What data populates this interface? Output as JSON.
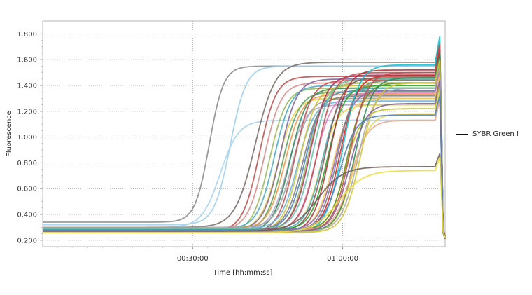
{
  "chart_data": {
    "type": "line",
    "title": "",
    "xlabel": "Time [hh:mm:ss]",
    "ylabel": "Fluorescence",
    "x_unit": "seconds",
    "xlim": [
      0,
      4830
    ],
    "ylim": [
      0.15,
      1.9
    ],
    "x_ticks": [
      {
        "value": 1800,
        "label": "00:30:00"
      },
      {
        "value": 3600,
        "label": "01:00:00"
      }
    ],
    "y_ticks": [
      {
        "value": 0.2,
        "label": "0.200"
      },
      {
        "value": 0.4,
        "label": "0.400"
      },
      {
        "value": 0.6,
        "label": "0.600"
      },
      {
        "value": 0.8,
        "label": "0.800"
      },
      {
        "value": 1.0,
        "label": "1.000"
      },
      {
        "value": 1.2,
        "label": "1.200"
      },
      {
        "value": 1.4,
        "label": "1.400"
      },
      {
        "value": 1.6,
        "label": "1.600"
      },
      {
        "value": 1.8,
        "label": "1.800"
      }
    ],
    "grid": true,
    "legend_position": "right",
    "legend": [
      {
        "label": "SYBR Green I",
        "color": "#111111"
      }
    ],
    "melt_start": 4710,
    "melt_end": 4830,
    "series": [
      {
        "color": "#8c8c8c",
        "baseline": 0.34,
        "plateau": 1.55,
        "midpoint": 2000,
        "slope": 85,
        "final": 1.7,
        "end": 0.24
      },
      {
        "color": "#9fcfee",
        "baseline": 0.32,
        "plateau": 1.55,
        "midpoint": 2250,
        "slope": 95,
        "final": 1.72,
        "end": 0.22
      },
      {
        "color": "#a9d3f0",
        "baseline": 0.3,
        "plateau": 1.13,
        "midpoint": 2130,
        "slope": 110,
        "final": 1.3,
        "end": 0.22
      },
      {
        "color": "#7a6e68",
        "baseline": 0.3,
        "plateau": 1.58,
        "midpoint": 2550,
        "slope": 120,
        "final": 1.72,
        "end": 0.23
      },
      {
        "color": "#c0504d",
        "baseline": 0.27,
        "plateau": 1.47,
        "midpoint": 2600,
        "slope": 100,
        "final": 1.65,
        "end": 0.22
      },
      {
        "color": "#d98c8a",
        "baseline": 0.28,
        "plateau": 1.42,
        "midpoint": 2660,
        "slope": 100,
        "final": 1.6,
        "end": 0.22
      },
      {
        "color": "#9bbb59",
        "baseline": 0.26,
        "plateau": 1.38,
        "midpoint": 2720,
        "slope": 100,
        "final": 1.55,
        "end": 0.21
      },
      {
        "color": "#4bacc6",
        "baseline": 0.29,
        "plateau": 1.4,
        "midpoint": 2780,
        "slope": 100,
        "final": 1.58,
        "end": 0.22
      },
      {
        "color": "#e8d44d",
        "baseline": 0.28,
        "plateau": 1.3,
        "midpoint": 2820,
        "slope": 100,
        "final": 1.48,
        "end": 0.21
      },
      {
        "color": "#8064a2",
        "baseline": 0.28,
        "plateau": 1.45,
        "midpoint": 2850,
        "slope": 100,
        "final": 1.62,
        "end": 0.22
      },
      {
        "color": "#5aa05a",
        "baseline": 0.27,
        "plateau": 1.35,
        "midpoint": 2880,
        "slope": 100,
        "final": 1.52,
        "end": 0.21
      },
      {
        "color": "#f79646",
        "baseline": 0.29,
        "plateau": 1.33,
        "midpoint": 2910,
        "slope": 100,
        "final": 1.5,
        "end": 0.22
      },
      {
        "color": "#b7a7d0",
        "baseline": 0.28,
        "plateau": 1.25,
        "midpoint": 2940,
        "slope": 100,
        "final": 1.42,
        "end": 0.21
      },
      {
        "color": "#2e8b57",
        "baseline": 0.27,
        "plateau": 1.38,
        "midpoint": 2970,
        "slope": 100,
        "final": 1.56,
        "end": 0.22
      },
      {
        "color": "#a5a5a5",
        "baseline": 0.3,
        "plateau": 1.3,
        "midpoint": 3000,
        "slope": 100,
        "final": 1.48,
        "end": 0.22
      },
      {
        "color": "#c0504d",
        "baseline": 0.26,
        "plateau": 1.44,
        "midpoint": 3030,
        "slope": 100,
        "final": 1.62,
        "end": 0.22
      },
      {
        "color": "#6bb5e0",
        "baseline": 0.29,
        "plateau": 1.28,
        "midpoint": 3060,
        "slope": 100,
        "final": 1.46,
        "end": 0.21
      },
      {
        "color": "#d4c33a",
        "baseline": 0.27,
        "plateau": 1.4,
        "midpoint": 3090,
        "slope": 100,
        "final": 1.58,
        "end": 0.22
      },
      {
        "color": "#7f7f7f",
        "baseline": 0.28,
        "plateau": 1.32,
        "midpoint": 3120,
        "slope": 100,
        "final": 1.5,
        "end": 0.22
      },
      {
        "color": "#4f81bd",
        "baseline": 0.28,
        "plateau": 1.36,
        "midpoint": 3150,
        "slope": 100,
        "final": 1.54,
        "end": 0.22
      },
      {
        "color": "#9bbb59",
        "baseline": 0.26,
        "plateau": 1.42,
        "midpoint": 3180,
        "slope": 100,
        "final": 1.6,
        "end": 0.22
      },
      {
        "color": "#b03060",
        "baseline": 0.28,
        "plateau": 1.48,
        "midpoint": 3210,
        "slope": 100,
        "final": 1.66,
        "end": 0.22
      },
      {
        "color": "#66c2a5",
        "baseline": 0.29,
        "plateau": 1.45,
        "midpoint": 3240,
        "slope": 100,
        "final": 1.62,
        "end": 0.22
      },
      {
        "color": "#e377c2",
        "baseline": 0.27,
        "plateau": 1.34,
        "midpoint": 3270,
        "slope": 100,
        "final": 1.52,
        "end": 0.21
      },
      {
        "color": "#c0504d",
        "baseline": 0.28,
        "plateau": 1.5,
        "midpoint": 3300,
        "slope": 100,
        "final": 1.68,
        "end": 0.22
      },
      {
        "color": "#e8d44d",
        "baseline": 0.27,
        "plateau": 1.25,
        "midpoint": 3330,
        "slope": 100,
        "final": 1.42,
        "end": 0.21
      },
      {
        "color": "#4bacc6",
        "baseline": 0.28,
        "plateau": 1.38,
        "midpoint": 3360,
        "slope": 100,
        "final": 1.56,
        "end": 0.22
      },
      {
        "color": "#8c564b",
        "baseline": 0.27,
        "plateau": 1.46,
        "midpoint": 3390,
        "slope": 100,
        "final": 1.64,
        "end": 0.22
      },
      {
        "color": "#2ca02c",
        "baseline": 0.28,
        "plateau": 1.4,
        "midpoint": 3420,
        "slope": 100,
        "final": 1.58,
        "end": 0.22
      },
      {
        "color": "#a33",
        "baseline": 0.26,
        "plateau": 1.52,
        "midpoint": 3450,
        "slope": 100,
        "final": 1.7,
        "end": 0.22
      },
      {
        "color": "#f7d05a",
        "baseline": 0.27,
        "plateau": 1.3,
        "midpoint": 3480,
        "slope": 100,
        "final": 1.48,
        "end": 0.21
      },
      {
        "color": "#9467bd",
        "baseline": 0.28,
        "plateau": 1.36,
        "midpoint": 3510,
        "slope": 100,
        "final": 1.54,
        "end": 0.22
      },
      {
        "color": "#7f7f7f",
        "baseline": 0.27,
        "plateau": 1.44,
        "midpoint": 3540,
        "slope": 100,
        "final": 1.62,
        "end": 0.22
      },
      {
        "color": "#d62728",
        "baseline": 0.27,
        "plateau": 1.48,
        "midpoint": 3570,
        "slope": 100,
        "final": 1.66,
        "end": 0.22
      },
      {
        "color": "#17becf",
        "baseline": 0.26,
        "plateau": 1.56,
        "midpoint": 3600,
        "slope": 100,
        "final": 1.78,
        "end": 0.22
      },
      {
        "color": "#bcbd22",
        "baseline": 0.27,
        "plateau": 1.22,
        "midpoint": 3630,
        "slope": 100,
        "final": 1.4,
        "end": 0.21
      },
      {
        "color": "#6b8e23",
        "baseline": 0.28,
        "plateau": 1.42,
        "midpoint": 3660,
        "slope": 100,
        "final": 1.6,
        "end": 0.22
      },
      {
        "color": "#c0504d",
        "baseline": 0.27,
        "plateau": 1.5,
        "midpoint": 3690,
        "slope": 100,
        "final": 1.72,
        "end": 0.22
      },
      {
        "color": "#e8d44d",
        "baseline": 0.26,
        "plateau": 1.18,
        "midpoint": 3720,
        "slope": 100,
        "final": 1.35,
        "end": 0.21
      },
      {
        "color": "#2e8b57",
        "baseline": 0.27,
        "plateau": 1.46,
        "midpoint": 3750,
        "slope": 100,
        "final": 1.64,
        "end": 0.22
      },
      {
        "color": "#f4a582",
        "baseline": 0.28,
        "plateau": 1.13,
        "midpoint": 3700,
        "slope": 100,
        "final": 1.28,
        "end": 0.22
      },
      {
        "color": "#aaaaaa",
        "baseline": 0.27,
        "plateau": 1.38,
        "midpoint": 3780,
        "slope": 100,
        "final": 1.55,
        "end": 0.22
      },
      {
        "color": "#d4c33a",
        "baseline": 0.26,
        "plateau": 1.42,
        "midpoint": 3810,
        "slope": 100,
        "final": 1.6,
        "end": 0.22
      },
      {
        "color": "#8064a2",
        "baseline": 0.27,
        "plateau": 1.26,
        "midpoint": 3680,
        "slope": 100,
        "final": 1.44,
        "end": 0.21
      },
      {
        "color": "#4f81bd",
        "baseline": 0.28,
        "plateau": 1.17,
        "midpoint": 3560,
        "slope": 100,
        "final": 1.32,
        "end": 0.22
      },
      {
        "color": "#6b5f5a",
        "baseline": 0.27,
        "plateau": 0.77,
        "midpoint": 3300,
        "slope": 150,
        "final": 0.87,
        "end": 0.23
      },
      {
        "color": "#eedc3a",
        "baseline": 0.26,
        "plateau": 0.74,
        "midpoint": 3550,
        "slope": 150,
        "final": 0.84,
        "end": 0.22
      }
    ]
  }
}
